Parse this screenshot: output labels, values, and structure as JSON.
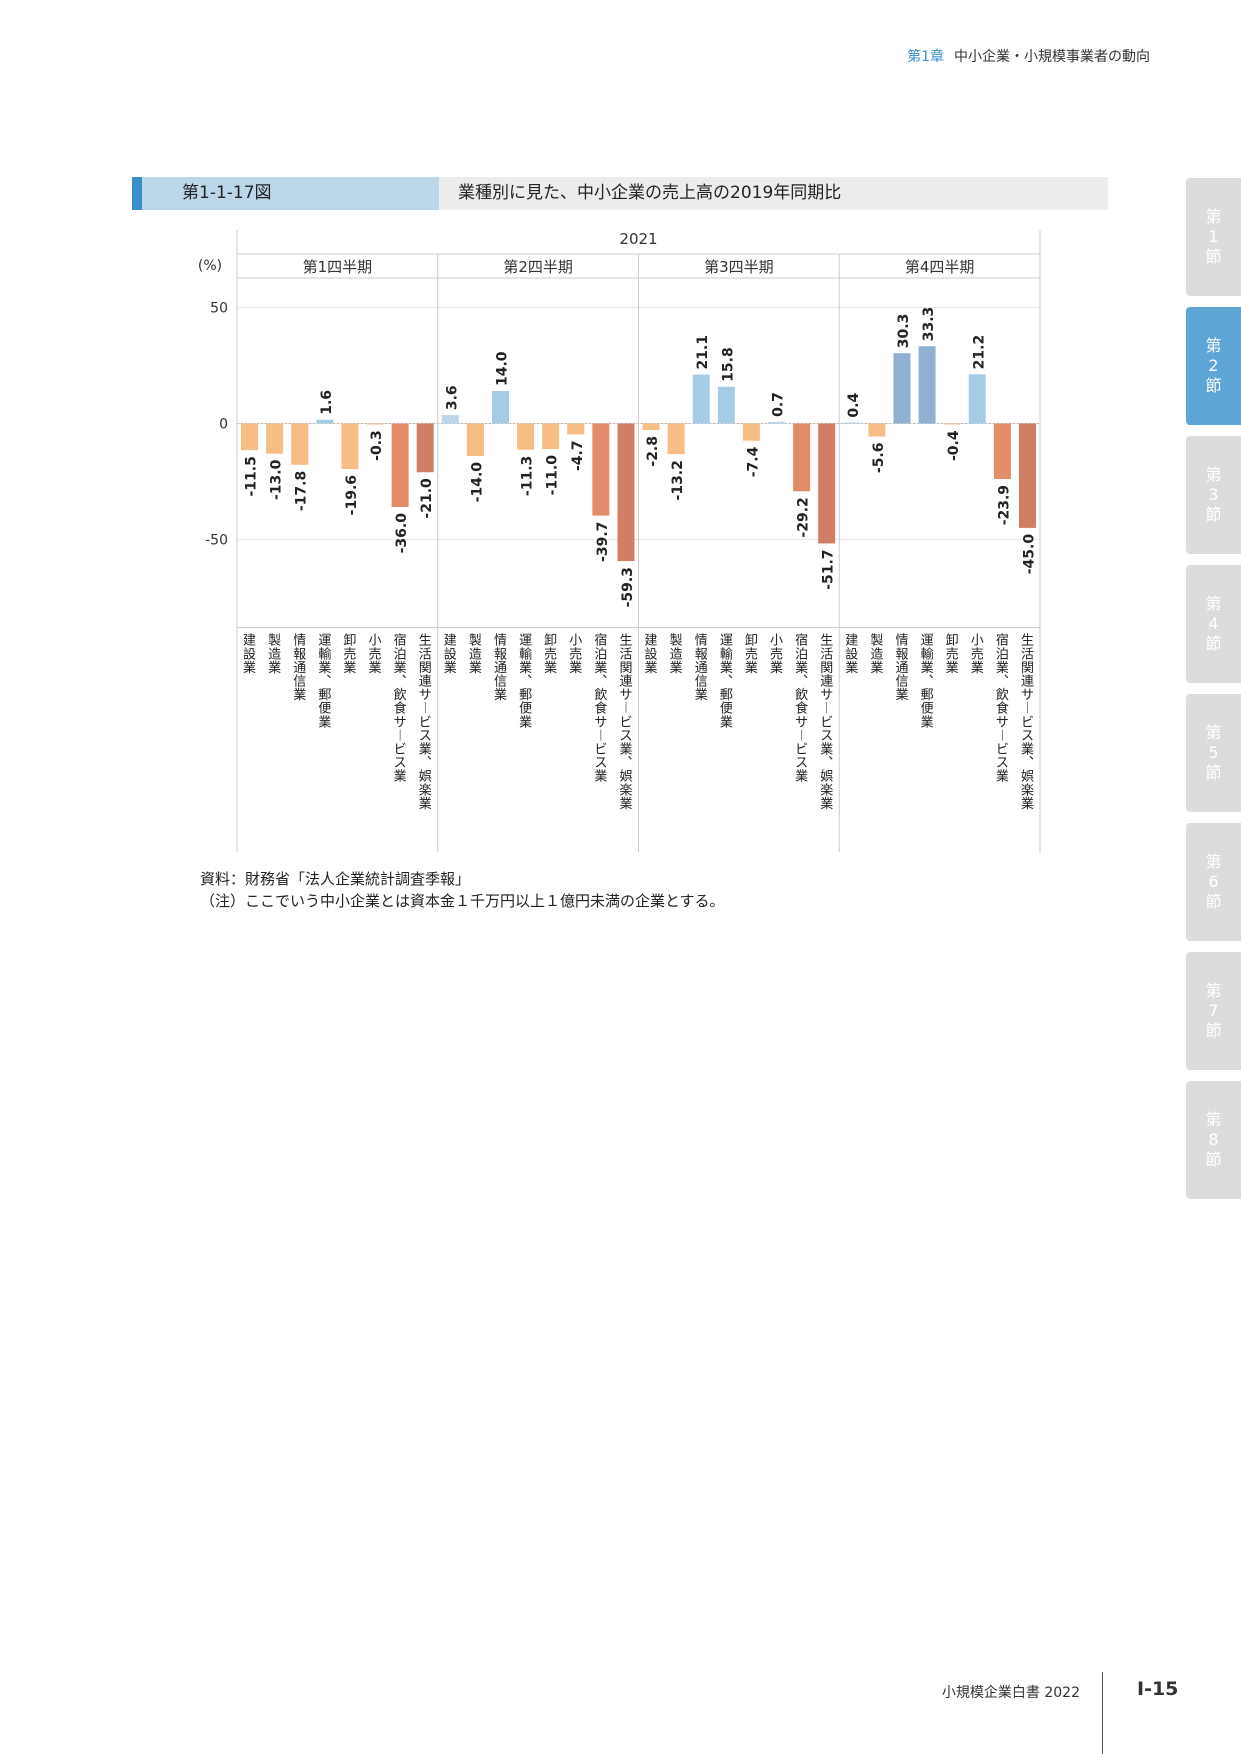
{
  "header": {
    "chapter": "第1章",
    "chapter_title": "中小企業・小規模事業者の動向"
  },
  "figure": {
    "number": "第1-1-17図",
    "title": "業種別に見た、中小企業の売上高の2019年同期比"
  },
  "chart_data": {
    "type": "bar",
    "title": "",
    "year_label": "2021",
    "ylabel": "(%)",
    "ylim": [
      -88,
      62
    ],
    "yticks": [
      50,
      0,
      -50
    ],
    "grid": true,
    "categories": [
      "建設業",
      "製造業",
      "情報通信業",
      "運輸業、郵便業",
      "卸売業",
      "小売業",
      "宿泊業、飲食サービス業",
      "生活関連サービス業、娯楽業"
    ],
    "category_colors": [
      "#f6bd84",
      "#f6bd84",
      "#f6bd84",
      "#f6bd84",
      "#f6bd84",
      "#f6bd84",
      "#e28c68",
      "#d07f66"
    ],
    "positive_colors": [
      "#b9d6ea",
      "#b9d6ea",
      "#a6cbe5",
      "#a6cbe5",
      "#b9d6ea",
      "#b9d6ea",
      "#b9d6ea",
      "#b9d6ea"
    ],
    "q4_positive_colors": [
      "#b9d6ea",
      "#b9d6ea",
      "#8fb0d1",
      "#8fb0d1",
      "#b9d6ea",
      "#a6cbe5",
      "#b9d6ea",
      "#b9d6ea"
    ],
    "groups": [
      {
        "name": "第1四半期",
        "values": [
          -11.5,
          -13.0,
          -17.8,
          1.6,
          -19.6,
          -0.3,
          -36.0,
          -21.0
        ]
      },
      {
        "name": "第2四半期",
        "values": [
          3.6,
          -14.0,
          14.0,
          -11.3,
          -11.0,
          -4.7,
          -39.7,
          -59.3
        ]
      },
      {
        "name": "第3四半期",
        "values": [
          -2.8,
          -13.2,
          21.1,
          15.8,
          -7.4,
          0.7,
          -29.2,
          -51.7
        ]
      },
      {
        "name": "第4四半期",
        "values": [
          0.4,
          -5.6,
          30.3,
          33.3,
          -0.4,
          21.2,
          -23.9,
          -45.0
        ]
      }
    ],
    "group_labels_display": [
      [
        "-11.5",
        "-13.0",
        "-17.8",
        "1.6",
        "-19.6",
        "-0.3",
        "-36.0",
        "-21.0"
      ],
      [
        "3.6",
        "-14.0",
        "14.0",
        "-11.3",
        "-11.0",
        "-4.7",
        "-39.7",
        "-59.3"
      ],
      [
        "-2.8",
        "-13.2",
        "21.1",
        "15.8",
        "-7.4",
        "0.7",
        "-29.2",
        "-51.7"
      ],
      [
        "0.4",
        "-5.6",
        "30.3",
        "33.3",
        "-0.4",
        "21.2",
        "-23.9",
        "-45.0"
      ]
    ]
  },
  "notes": {
    "source": "資料：財務省「法人企業統計調査季報」",
    "note": "（注）ここでいう中小企業とは資本金１千万円以上１億円未満の企業とする。"
  },
  "side_tabs": [
    {
      "label": "第1節",
      "chars": [
        "第",
        "1",
        "節"
      ],
      "active": false
    },
    {
      "label": "第2節",
      "chars": [
        "第",
        "2",
        "節"
      ],
      "active": true
    },
    {
      "label": "第3節",
      "chars": [
        "第",
        "3",
        "節"
      ],
      "active": false
    },
    {
      "label": "第4節",
      "chars": [
        "第",
        "4",
        "節"
      ],
      "active": false
    },
    {
      "label": "第5節",
      "chars": [
        "第",
        "5",
        "節"
      ],
      "active": false
    },
    {
      "label": "第6節",
      "chars": [
        "第",
        "6",
        "節"
      ],
      "active": false
    },
    {
      "label": "第7節",
      "chars": [
        "第",
        "7",
        "節"
      ],
      "active": false
    },
    {
      "label": "第8節",
      "chars": [
        "第",
        "8",
        "節"
      ],
      "active": false
    }
  ],
  "footer": {
    "book": "小規模企業白書 2022",
    "page": "Ⅰ-15"
  }
}
